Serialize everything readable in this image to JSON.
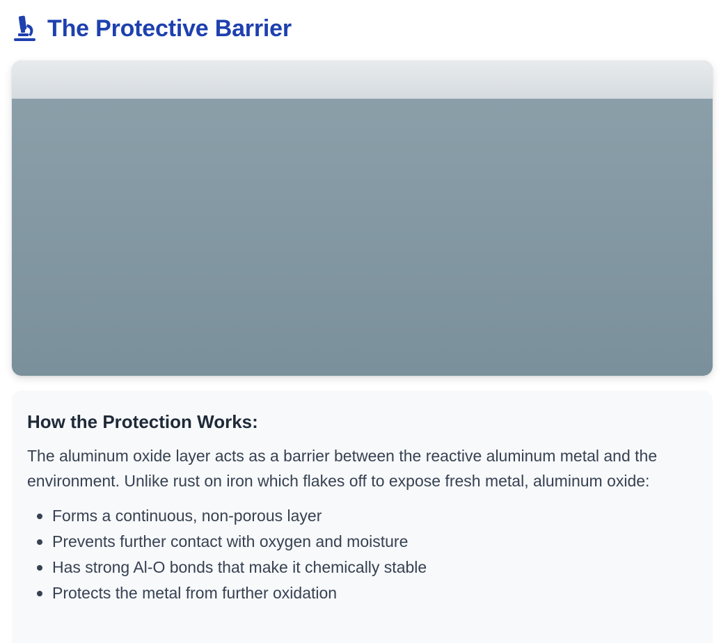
{
  "header": {
    "icon": "microscope-icon",
    "title": "The Protective Barrier",
    "accent_color": "#1e40af"
  },
  "diagram": {
    "oxide_layer_color": "#dfe4e7",
    "metal_color": "#8399a4"
  },
  "info": {
    "heading": "How the Protection Works:",
    "paragraph": "The aluminum oxide layer acts as a barrier between the reactive aluminum metal and the environment. Unlike rust on iron which flakes off to expose fresh metal, aluminum oxide:",
    "bullets": [
      "Forms a continuous, non-porous layer",
      "Prevents further contact with oxygen and moisture",
      "Has strong Al-O bonds that make it chemically stable",
      "Protects the metal from further oxidation"
    ]
  }
}
